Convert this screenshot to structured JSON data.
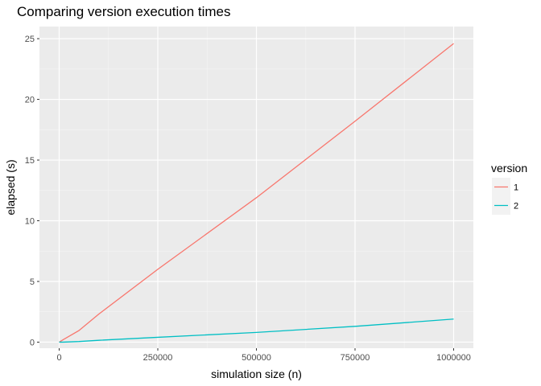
{
  "chart_data": {
    "type": "line",
    "title": "Comparing version execution times",
    "xlabel": "simulation size (n)",
    "ylabel": "elapsed (s)",
    "xlim": [
      -50000,
      1050000
    ],
    "ylim": [
      -0.5,
      26
    ],
    "x_ticks": [
      0,
      250000,
      500000,
      750000,
      1000000
    ],
    "x_tick_labels": [
      "0",
      "250000",
      "500000",
      "750000",
      "1000000"
    ],
    "y_ticks": [
      0,
      5,
      10,
      15,
      20,
      25
    ],
    "y_tick_labels": [
      "0",
      "5",
      "10",
      "15",
      "20",
      "25"
    ],
    "grid": true,
    "legend": {
      "title": "version",
      "placement": "right"
    },
    "series": [
      {
        "name": "1",
        "color": "#F8766D",
        "x": [
          0,
          10000,
          50000,
          100000,
          250000,
          500000,
          750000,
          1000000
        ],
        "y": [
          0.0,
          0.2,
          0.95,
          2.3,
          6.0,
          11.9,
          18.2,
          24.6
        ]
      },
      {
        "name": "2",
        "color": "#00BFC4",
        "x": [
          0,
          10000,
          50000,
          100000,
          250000,
          500000,
          750000,
          1000000
        ],
        "y": [
          0.0,
          0.0,
          0.05,
          0.15,
          0.4,
          0.8,
          1.3,
          1.9
        ]
      }
    ]
  }
}
